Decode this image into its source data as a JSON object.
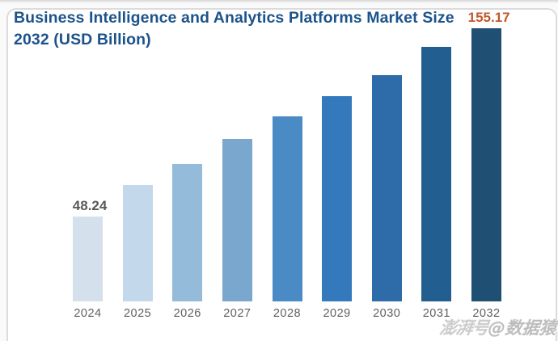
{
  "title": {
    "line1": "Business Intelligence and Analytics Platforms Market Size",
    "line2": "2032 (USD Billion)",
    "color": "#1c538c"
  },
  "watermark": {
    "prefix": "澎湃号",
    "handle": "@数据猿",
    "prefix_color": "#cccccc",
    "handle_color": "#bdbdbd"
  },
  "chart_data": {
    "type": "bar",
    "title": "Business Intelligence and Analytics Platforms Market Size 2032 (USD Billion)",
    "unit": "USD Billion",
    "categories": [
      "2024",
      "2025",
      "2026",
      "2027",
      "2028",
      "2029",
      "2030",
      "2031",
      "2032"
    ],
    "values": [
      48.24,
      66.2,
      78.1,
      92.3,
      105.2,
      116.7,
      128.6,
      144.7,
      155.17
    ],
    "bar_colors": [
      "#d4e1ed",
      "#c3d8ea",
      "#94bbd9",
      "#7aa7ce",
      "#4a8ac5",
      "#3579bd",
      "#2d6ca8",
      "#235e90",
      "#1f4f72"
    ],
    "point_labels": [
      {
        "index": 0,
        "text": "48.24",
        "color": "#595959"
      },
      {
        "index": 8,
        "text": "155.17",
        "color": "#c0592b",
        "note": "partially hidden behind chart title"
      }
    ],
    "ylim": [
      0,
      160
    ],
    "xlabel": "",
    "ylabel": "",
    "grid": false,
    "legend": false,
    "value_note": "Only 2024 and 2032 bars carry data labels; intermediate values estimated from bar heights"
  }
}
